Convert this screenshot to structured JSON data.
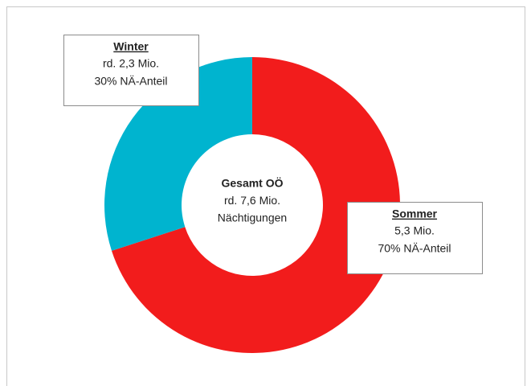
{
  "chart_data": {
    "type": "donut",
    "categories": [
      "Sommer",
      "Winter"
    ],
    "values": [
      70,
      30
    ],
    "value_labels": [
      "70% NÄ-Anteil",
      "30% NÄ-Anteil"
    ],
    "amounts": [
      "5,3 Mio.",
      "rd. 2,3 Mio."
    ],
    "colors": [
      "#f21c1c",
      "#00b4cf"
    ],
    "center_text": [
      "Gesamt OÖ",
      "rd. 7,6 Mio.",
      "Nächtigungen"
    ]
  }
}
